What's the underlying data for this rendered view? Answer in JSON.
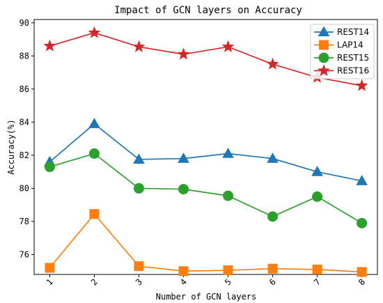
{
  "chart_data": {
    "type": "line",
    "title": "Impact of GCN layers on Accuracy",
    "xlabel": "Number of GCN layers",
    "ylabel": "Accuracy(%)",
    "x": [
      1,
      2,
      3,
      4,
      5,
      6,
      7,
      8
    ],
    "x_tick_labels": [
      "1",
      "2",
      "3",
      "4",
      "5",
      "6",
      "7",
      "8"
    ],
    "ylim": [
      74.8,
      90.2
    ],
    "y_ticks": [
      76,
      78,
      80,
      82,
      84,
      86,
      88,
      90
    ],
    "y_tick_labels": [
      "76",
      "78",
      "80",
      "82",
      "84",
      "86",
      "88",
      "90"
    ],
    "grid": false,
    "legend_position": "top-right",
    "series": [
      {
        "name": "REST14",
        "color": "#1f77b4",
        "marker": "triangle",
        "values": [
          81.6,
          83.9,
          81.75,
          81.8,
          82.1,
          81.8,
          81.0,
          80.45
        ]
      },
      {
        "name": "LAP14",
        "color": "#ff7f0e",
        "marker": "square",
        "values": [
          75.2,
          78.45,
          75.3,
          75.0,
          75.05,
          75.15,
          75.1,
          74.95
        ]
      },
      {
        "name": "REST15",
        "color": "#2ca02c",
        "marker": "circle",
        "values": [
          81.3,
          82.1,
          80.0,
          79.95,
          79.55,
          78.3,
          79.5,
          77.9
        ]
      },
      {
        "name": "REST16",
        "color": "#d62728",
        "marker": "star",
        "values": [
          88.6,
          89.4,
          88.55,
          88.1,
          88.55,
          87.5,
          86.7,
          86.2
        ]
      }
    ]
  }
}
